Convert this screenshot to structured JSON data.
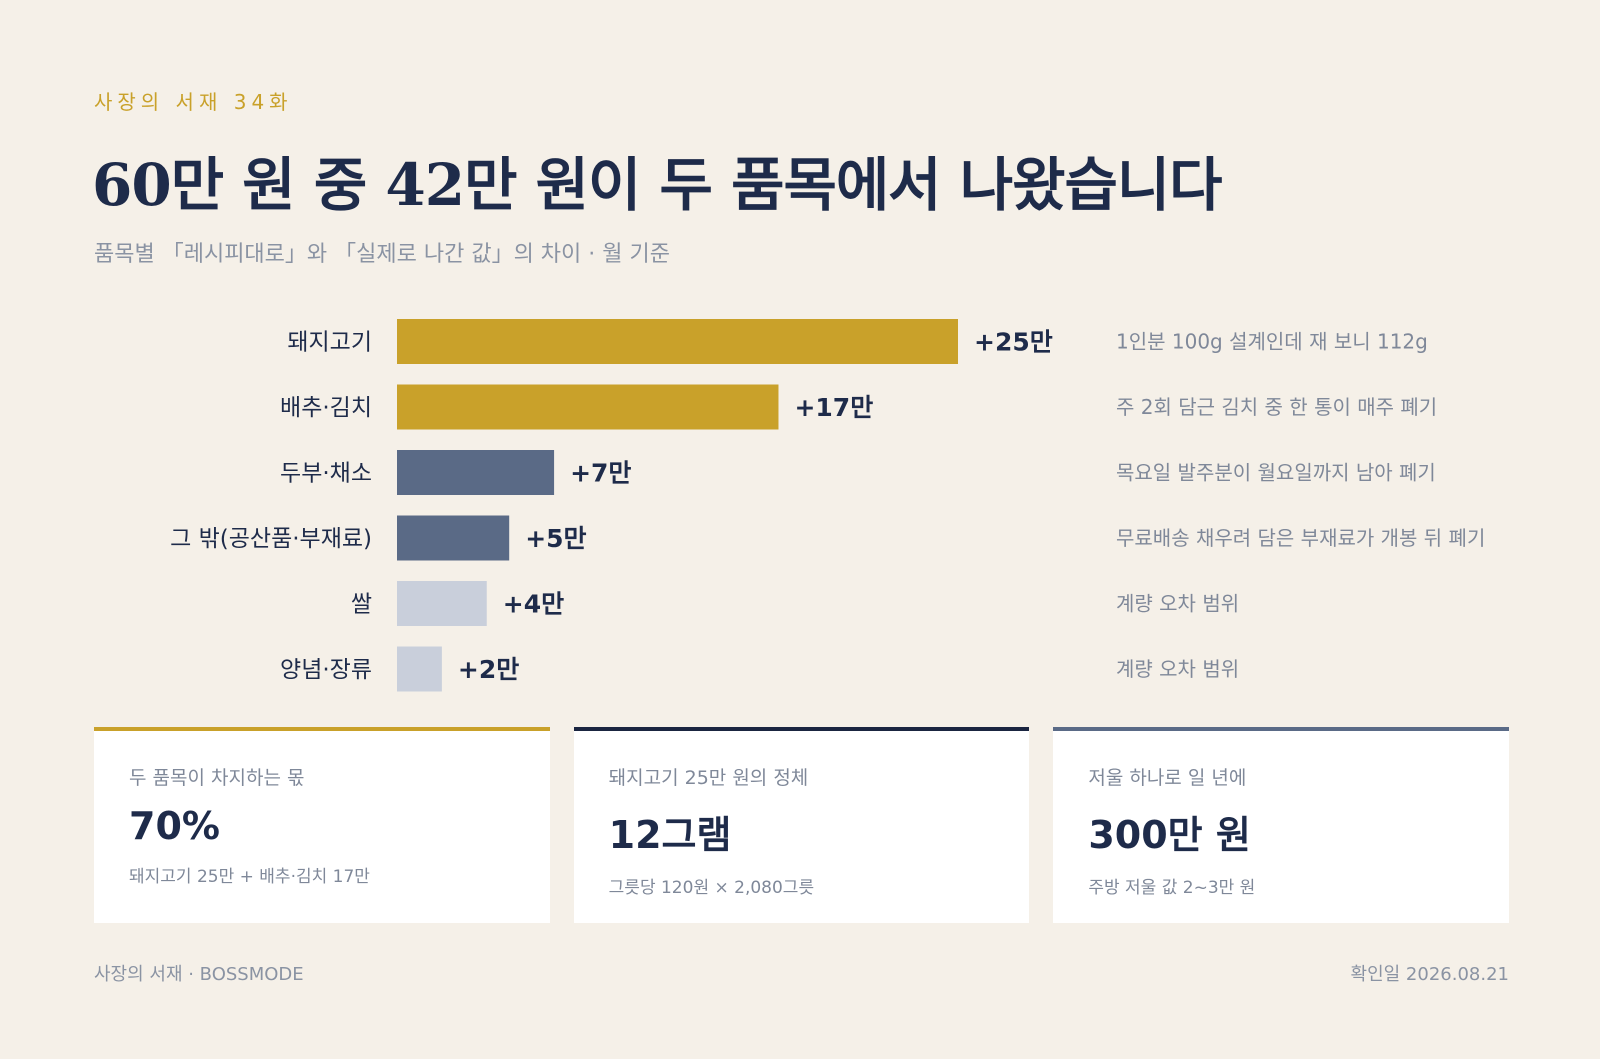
{
  "header": {
    "eyebrow": "사장의 서재 34화",
    "title": "60만 원 중 42만 원이 두 품목에서 나왔습니다",
    "subtitle": "품목별 「레시피대로」와 「실제로 나간 값」의 차이 · 월 기준"
  },
  "chart_data": {
    "type": "bar",
    "orientation": "horizontal",
    "unit": "만",
    "categories": [
      "돼지고기",
      "배추·김치",
      "두부·채소",
      "그 밖(공산품·부재료)",
      "쌀",
      "양념·장류"
    ],
    "values": [
      25,
      17,
      7,
      5,
      4,
      2
    ],
    "value_labels": [
      "+25만",
      "+17만",
      "+7만",
      "+5만",
      "+4만",
      "+2만"
    ],
    "notes": [
      "1인분 100g 설계인데 재 보니 112g",
      "주 2회 담근 김치 중 한 통이 매주 폐기",
      "목요일 발주분이 월요일까지 남아 폐기",
      "무료배송 채우려 담은 부재료가 개봉 뒤 폐기",
      "계량 오차 범위",
      "계량 오차 범위"
    ],
    "colors": [
      "#c9a12a",
      "#c9a12a",
      "#5a6a86",
      "#5a6a86",
      "#c9cfdb",
      "#c9cfdb"
    ],
    "xlim": [
      0,
      25
    ],
    "grid": false,
    "legend": "none"
  },
  "cards": [
    {
      "label": "두 품목이 차지하는 몫",
      "value": "70%",
      "note": "돼지고기 25만 + 배추·김치 17만"
    },
    {
      "label": "돼지고기 25만 원의 정체",
      "value": "12그램",
      "note": "그릇당 120원 × 2,080그릇"
    },
    {
      "label": "저울 하나로 일 년에",
      "value": "300만 원",
      "note": "주방 저울 값 2~3만 원"
    }
  ],
  "footer": {
    "left": "사장의 서재 · BOSSMODE",
    "right": "확인일 2026.08.21"
  },
  "colors": {
    "background": "#f5f0e8",
    "accent_gold": "#c9a12a",
    "navy": "#1e2b4a",
    "slate": "#5a6a86",
    "light_gray": "#c9cfdb"
  }
}
